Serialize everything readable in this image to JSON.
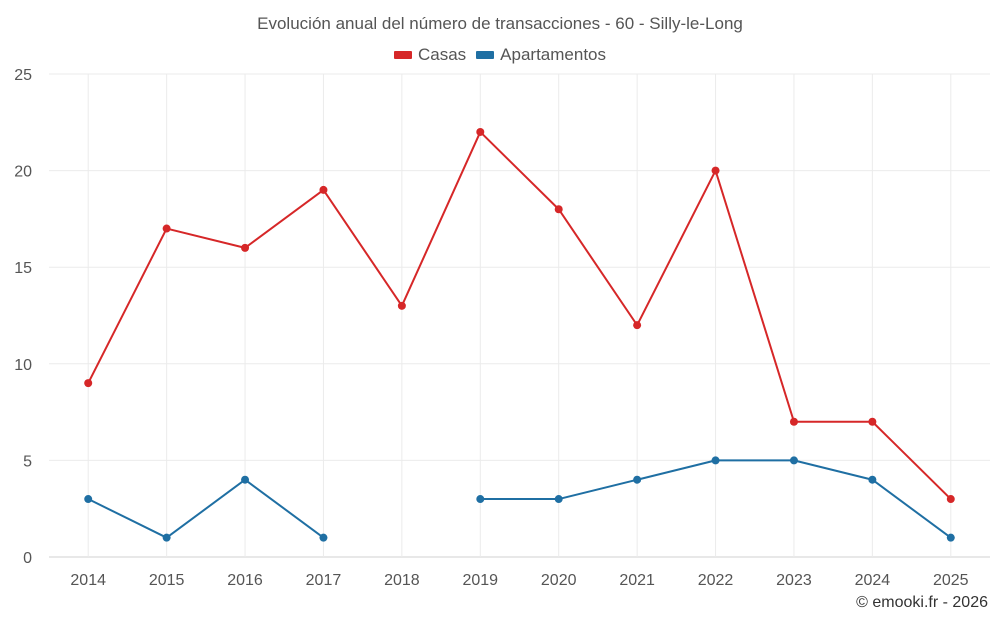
{
  "chart_data": {
    "type": "line",
    "title": "Evolución anual del número de transacciones - 60 - Silly-le-Long",
    "xlabel": "",
    "ylabel": "",
    "categories": [
      "2014",
      "2015",
      "2016",
      "2017",
      "2018",
      "2019",
      "2020",
      "2021",
      "2022",
      "2023",
      "2024",
      "2025"
    ],
    "ylim": [
      0,
      25
    ],
    "yticks": [
      0,
      5,
      10,
      15,
      20,
      25
    ],
    "grid": true,
    "legend_position": "top-center",
    "series": [
      {
        "name": "Casas",
        "color": "#d62728",
        "values": [
          9,
          17,
          16,
          19,
          13,
          22,
          18,
          12,
          20,
          7,
          7,
          3
        ]
      },
      {
        "name": "Apartamentos",
        "color": "#1f6fa3",
        "values": [
          3,
          1,
          4,
          1,
          null,
          3,
          3,
          4,
          5,
          5,
          4,
          1
        ]
      }
    ]
  },
  "credit": "© emooki.fr - 2026"
}
